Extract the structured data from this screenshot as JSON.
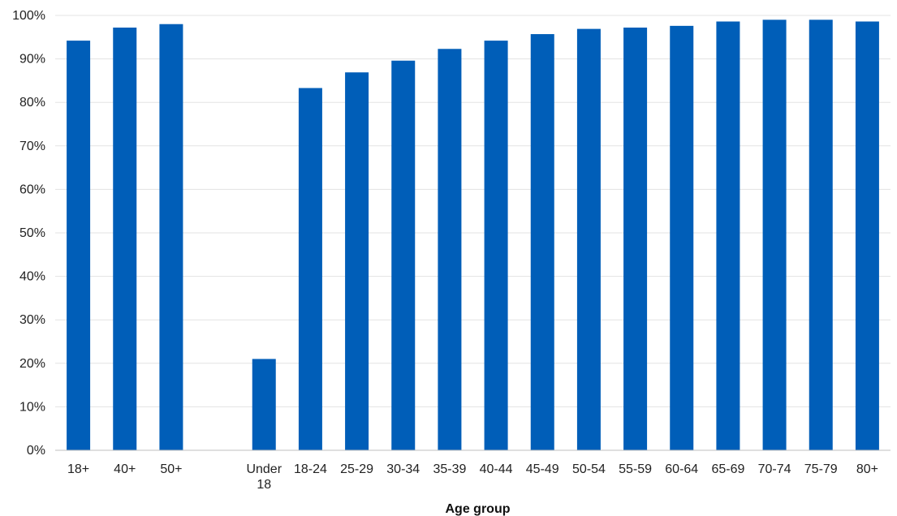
{
  "chart_data": {
    "type": "bar",
    "title": "",
    "xlabel": "Age group",
    "ylabel": "",
    "ylim": [
      0,
      100
    ],
    "y_ticks": [
      "0%",
      "10%",
      "20%",
      "30%",
      "40%",
      "50%",
      "60%",
      "70%",
      "80%",
      "90%",
      "100%"
    ],
    "grid": true,
    "legend": "none",
    "color": "#005EB8",
    "categories": [
      [
        "18+"
      ],
      [
        "40+"
      ],
      [
        "50+"
      ],
      [
        ""
      ],
      [
        "Under",
        "18"
      ],
      [
        "18-24"
      ],
      [
        "25-29"
      ],
      [
        "30-34"
      ],
      [
        "35-39"
      ],
      [
        "40-44"
      ],
      [
        "45-49"
      ],
      [
        "50-54"
      ],
      [
        "55-59"
      ],
      [
        "60-64"
      ],
      [
        "65-69"
      ],
      [
        "70-74"
      ],
      [
        "75-79"
      ],
      [
        "80+"
      ]
    ],
    "values": [
      94.2,
      97.2,
      98.0,
      null,
      21.0,
      83.3,
      86.9,
      89.6,
      92.3,
      94.2,
      95.7,
      96.9,
      97.2,
      97.6,
      98.6,
      99.0,
      99.0,
      98.6
    ]
  }
}
